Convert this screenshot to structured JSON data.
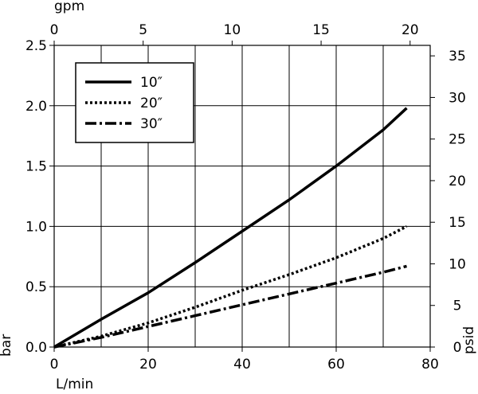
{
  "chart_data": {
    "type": "line",
    "x_axis": {
      "label": "L/min",
      "range": [
        0,
        80
      ],
      "ticks": [
        0,
        20,
        40,
        60,
        80
      ]
    },
    "top_axis": {
      "label": "gpm",
      "range": [
        0,
        21.13
      ],
      "ticks": [
        0,
        5,
        10,
        15,
        20
      ]
    },
    "y_axis": {
      "label": "bar",
      "range": [
        0,
        2.5
      ],
      "ticks": [
        "0.0",
        "0.5",
        "1.0",
        "1.5",
        "2.0",
        "2.5"
      ]
    },
    "right_axis": {
      "label": "psid",
      "range": [
        0,
        36.26
      ],
      "ticks": [
        0,
        5,
        10,
        15,
        20,
        25,
        30,
        35
      ]
    },
    "grid": true,
    "legend_position": "top-left",
    "series": [
      {
        "name": "10″",
        "style": "solid",
        "x": [
          0,
          10,
          20,
          30,
          40,
          50,
          60,
          70,
          75
        ],
        "y": [
          0,
          0.23,
          0.45,
          0.7,
          0.96,
          1.22,
          1.5,
          1.8,
          1.98
        ]
      },
      {
        "name": "20″",
        "style": "dotted",
        "x": [
          0,
          10,
          20,
          30,
          40,
          50,
          60,
          70,
          75
        ],
        "y": [
          0,
          0.09,
          0.2,
          0.33,
          0.47,
          0.6,
          0.74,
          0.9,
          1.0
        ]
      },
      {
        "name": "30″",
        "style": "dashdot",
        "x": [
          0,
          10,
          20,
          30,
          40,
          50,
          60,
          70,
          75
        ],
        "y": [
          0,
          0.08,
          0.17,
          0.26,
          0.35,
          0.44,
          0.53,
          0.62,
          0.67
        ]
      }
    ]
  }
}
